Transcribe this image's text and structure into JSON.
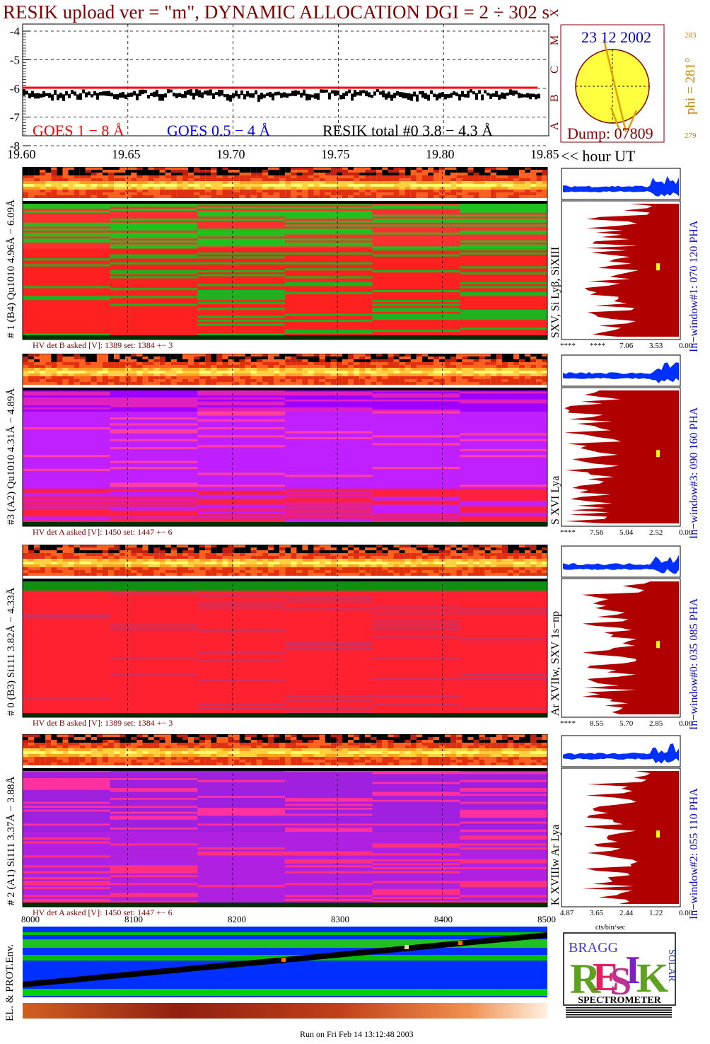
{
  "title": "RESIK upload ver = \"m\", DYNAMIC ALLOCATION  DGI =   2 ÷ 302 s",
  "goes": {
    "y_ticks": [
      "-4",
      "-5",
      "-6",
      "-7",
      "-8"
    ],
    "legend_goes18": "GOES 1 − 8 Å",
    "legend_goes054": "GOES 0.5 − 4 Å",
    "legend_resik": "RESIK total #0  3.8 − 4.3 Å",
    "class_letters": [
      "X",
      "M",
      "C",
      "B",
      "A"
    ],
    "color_goes18": "#ff0000",
    "color_goes054": "#0000ff"
  },
  "time_axis": {
    "ticks": [
      "19.60",
      "19.65",
      "19.70",
      "19.75",
      "19.80",
      "19.85"
    ],
    "unit": "<< hour UT"
  },
  "sun": {
    "date": "23 12 2002",
    "dump": "Dump: 07809",
    "phi": "phi = 281°",
    "phi_hi": "283",
    "phi_lo": "279"
  },
  "channels": [
    {
      "label": "# 1 (B4) Qu1010 4.96Å − 6.09Å",
      "hv": "HV det B asked [V]:  1389 set:  1384  +−    3",
      "lines": "SXV, Si Lyβ, SiXIII",
      "window": "In−window#1:  070 120 PHA",
      "hist_ticks": [
        "****",
        "****",
        "7.06",
        "3.53",
        "0.00"
      ],
      "dominant": "#ff2020"
    },
    {
      "label": "#3 (A2) Qu1010  4.31Å − 4.89Å",
      "hv": "HV det A asked [V]:  1450 set:  1447  +−    6",
      "lines": "S XVI Lya",
      "window": "In−window#3:  090 160 PHA",
      "hist_ticks": [
        "****",
        "7.56",
        "5.04",
        "2.52",
        "0.00"
      ],
      "dominant": "#c020ff"
    },
    {
      "label": "# 0 (B3) Si111  3.82Å − 4.33Å",
      "hv": "HV det B asked [V]:  1389 set:  1384  +−    3",
      "lines": "Ar XVIIw,  SXV 1s−np",
      "window": "In−window#0:  035 085 PHA",
      "hist_ticks": [
        "****",
        "8.55",
        "5.70",
        "2.85",
        "0.00"
      ],
      "dominant": "#ff2030"
    },
    {
      "label": "# 2 (A1) Si111  3.37Å − 3.88Å",
      "hv": "HV det A asked [V]:  1450 set:  1447  +−    6",
      "lines": "K XVIIIw  Ar Lya",
      "window": "In−window#2:  055 110 PHA",
      "hist_ticks": [
        "4.87",
        "3.65",
        "2.44",
        "1.22",
        "0.00"
      ],
      "dominant": "#b020e0"
    }
  ],
  "bottom_axis": {
    "ticks": [
      "8000",
      "8100",
      "8200",
      "8300",
      "8400",
      "8500"
    ],
    "hist_unit": "cts/bin/sec"
  },
  "env_label": "EL. & PROT.Env.",
  "logo": {
    "letters": [
      "R",
      "E",
      "S",
      "I",
      "K"
    ],
    "top": "BRAGG",
    "side": "SOLAR",
    "bottom": "SPECTROMETER"
  },
  "footer": "Run on Fri Feb 14 13:12:48 2003"
}
